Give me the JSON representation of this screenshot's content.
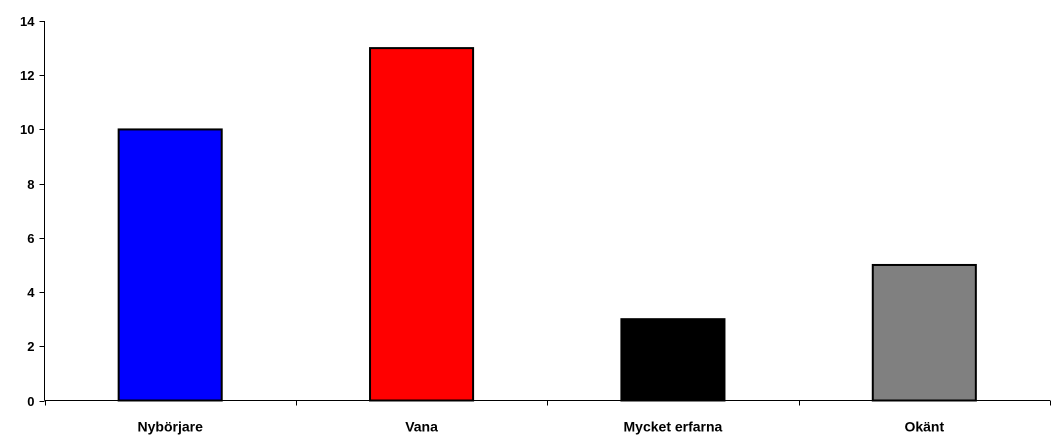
{
  "chart_data": {
    "type": "bar",
    "categories": [
      "Nybörjare",
      "Vana",
      "Mycket erfarna",
      "Okänt"
    ],
    "values": [
      10,
      13,
      3,
      5
    ],
    "colors": [
      "#0000ff",
      "#ff0000",
      "#000000",
      "#808080"
    ],
    "title": "",
    "xlabel": "",
    "ylabel": "",
    "ylim": [
      0,
      14
    ],
    "yticks": [
      0,
      2,
      4,
      6,
      8,
      10,
      12,
      14
    ],
    "grid": false,
    "legend": "none"
  }
}
